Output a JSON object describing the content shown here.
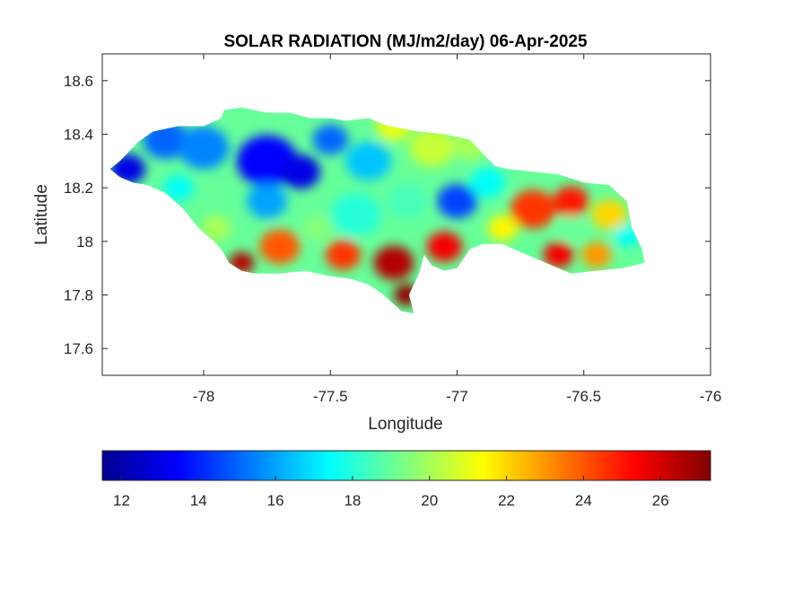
{
  "figure": {
    "title": "SOLAR RADIATION (MJ/m2/day) 06-Apr-2025"
  },
  "colors": {
    "axes": "#262626",
    "sea": "#ffffff",
    "colormap": [
      "#00008f",
      "#0000ff",
      "#0080ff",
      "#00ffff",
      "#80ff80",
      "#ffff00",
      "#ff8000",
      "#ff0000",
      "#800000"
    ]
  },
  "chart_data": {
    "type": "heatmap",
    "title": "SOLAR RADIATION (MJ/m2/day) 06-Apr-2025",
    "xlabel": "Longitude",
    "ylabel": "Latitude",
    "xlim": [
      -78.4,
      -76
    ],
    "ylim": [
      17.5,
      18.7
    ],
    "xticks": [
      -78,
      -77.5,
      -77,
      -76.5,
      -76
    ],
    "xtick_labels": [
      "-78",
      "-77.5",
      "-77",
      "-76.5",
      "-76"
    ],
    "yticks": [
      17.6,
      17.8,
      18,
      18.2,
      18.4,
      18.6
    ],
    "ytick_labels": [
      "17.6",
      "17.8",
      "18",
      "18.2",
      "18.4",
      "18.6"
    ],
    "colorbar": {
      "location": "bottom",
      "range": [
        11.5,
        27.3
      ],
      "ticks": [
        12,
        14,
        16,
        18,
        20,
        22,
        24,
        26
      ],
      "tick_labels": [
        "12",
        "14",
        "16",
        "18",
        "20",
        "22",
        "24",
        "26"
      ],
      "colormap": "jet"
    },
    "outline_lonlat": [
      [
        -78.37,
        18.27
      ],
      [
        -78.33,
        18.3
      ],
      [
        -78.3,
        18.33
      ],
      [
        -78.26,
        18.37
      ],
      [
        -78.2,
        18.41
      ],
      [
        -78.1,
        18.43
      ],
      [
        -78.0,
        18.43
      ],
      [
        -77.93,
        18.46
      ],
      [
        -77.92,
        18.49
      ],
      [
        -77.85,
        18.5
      ],
      [
        -77.75,
        18.48
      ],
      [
        -77.66,
        18.48
      ],
      [
        -77.58,
        18.46
      ],
      [
        -77.5,
        18.46
      ],
      [
        -77.44,
        18.45
      ],
      [
        -77.35,
        18.46
      ],
      [
        -77.27,
        18.43
      ],
      [
        -77.15,
        18.41
      ],
      [
        -77.05,
        18.4
      ],
      [
        -76.95,
        18.38
      ],
      [
        -76.9,
        18.33
      ],
      [
        -76.85,
        18.28
      ],
      [
        -76.8,
        18.27
      ],
      [
        -76.6,
        18.25
      ],
      [
        -76.5,
        18.22
      ],
      [
        -76.4,
        18.21
      ],
      [
        -76.33,
        18.15
      ],
      [
        -76.31,
        18.05
      ],
      [
        -76.27,
        17.97
      ],
      [
        -76.26,
        17.92
      ],
      [
        -76.35,
        17.9
      ],
      [
        -76.45,
        17.89
      ],
      [
        -76.55,
        17.88
      ],
      [
        -76.65,
        17.92
      ],
      [
        -76.75,
        17.96
      ],
      [
        -76.82,
        17.99
      ],
      [
        -76.9,
        17.99
      ],
      [
        -76.95,
        17.97
      ],
      [
        -77.0,
        17.9
      ],
      [
        -77.05,
        17.89
      ],
      [
        -77.1,
        17.91
      ],
      [
        -77.13,
        17.95
      ],
      [
        -77.15,
        17.88
      ],
      [
        -77.19,
        17.8
      ],
      [
        -77.17,
        17.73
      ],
      [
        -77.22,
        17.74
      ],
      [
        -77.29,
        17.8
      ],
      [
        -77.35,
        17.84
      ],
      [
        -77.42,
        17.86
      ],
      [
        -77.5,
        17.87
      ],
      [
        -77.6,
        17.89
      ],
      [
        -77.7,
        17.88
      ],
      [
        -77.8,
        17.88
      ],
      [
        -77.85,
        17.89
      ],
      [
        -77.9,
        17.92
      ],
      [
        -77.93,
        17.97
      ],
      [
        -77.96,
        18.0
      ],
      [
        -78.02,
        18.05
      ],
      [
        -78.08,
        18.12
      ],
      [
        -78.15,
        18.18
      ],
      [
        -78.22,
        18.21
      ],
      [
        -78.28,
        18.22
      ],
      [
        -78.33,
        18.24
      ],
      [
        -78.37,
        18.27
      ]
    ],
    "blobs": [
      {
        "lon": -78.3,
        "lat": 18.27,
        "value": 13.0,
        "radius": 0.07
      },
      {
        "lon": -78.15,
        "lat": 18.38,
        "value": 15.0,
        "radius": 0.09
      },
      {
        "lon": -78.0,
        "lat": 18.35,
        "value": 15.5,
        "radius": 0.1
      },
      {
        "lon": -77.75,
        "lat": 18.3,
        "value": 13.5,
        "radius": 0.12
      },
      {
        "lon": -77.62,
        "lat": 18.26,
        "value": 13.0,
        "radius": 0.08
      },
      {
        "lon": -77.5,
        "lat": 18.38,
        "value": 15.0,
        "radius": 0.07
      },
      {
        "lon": -77.75,
        "lat": 18.15,
        "value": 16.0,
        "radius": 0.08
      },
      {
        "lon": -77.35,
        "lat": 18.3,
        "value": 16.5,
        "radius": 0.09
      },
      {
        "lon": -77.25,
        "lat": 18.43,
        "value": 21.0,
        "radius": 0.07
      },
      {
        "lon": -77.1,
        "lat": 18.35,
        "value": 20.5,
        "radius": 0.09
      },
      {
        "lon": -76.95,
        "lat": 18.36,
        "value": 20.0,
        "radius": 0.07
      },
      {
        "lon": -77.4,
        "lat": 18.1,
        "value": 18.0,
        "radius": 0.1
      },
      {
        "lon": -77.2,
        "lat": 18.15,
        "value": 18.5,
        "radius": 0.08
      },
      {
        "lon": -77.0,
        "lat": 18.15,
        "value": 14.5,
        "radius": 0.08
      },
      {
        "lon": -76.88,
        "lat": 18.22,
        "value": 17.5,
        "radius": 0.07
      },
      {
        "lon": -76.7,
        "lat": 18.12,
        "value": 24.5,
        "radius": 0.09
      },
      {
        "lon": -76.55,
        "lat": 18.15,
        "value": 25.0,
        "radius": 0.07
      },
      {
        "lon": -76.4,
        "lat": 18.1,
        "value": 22.0,
        "radius": 0.07
      },
      {
        "lon": -76.33,
        "lat": 18.02,
        "value": 17.5,
        "radius": 0.05
      },
      {
        "lon": -76.45,
        "lat": 17.95,
        "value": 23.0,
        "radius": 0.06
      },
      {
        "lon": -76.6,
        "lat": 17.95,
        "value": 25.5,
        "radius": 0.06
      },
      {
        "lon": -76.82,
        "lat": 18.05,
        "value": 21.5,
        "radius": 0.06
      },
      {
        "lon": -77.05,
        "lat": 17.98,
        "value": 25.5,
        "radius": 0.07
      },
      {
        "lon": -77.25,
        "lat": 17.92,
        "value": 26.5,
        "radius": 0.08
      },
      {
        "lon": -77.2,
        "lat": 17.8,
        "value": 27.0,
        "radius": 0.05
      },
      {
        "lon": -77.45,
        "lat": 17.95,
        "value": 24.5,
        "radius": 0.07
      },
      {
        "lon": -77.7,
        "lat": 17.98,
        "value": 24.0,
        "radius": 0.08
      },
      {
        "lon": -77.85,
        "lat": 17.92,
        "value": 26.5,
        "radius": 0.05
      },
      {
        "lon": -77.95,
        "lat": 18.05,
        "value": 20.0,
        "radius": 0.06
      },
      {
        "lon": -77.55,
        "lat": 18.05,
        "value": 19.5,
        "radius": 0.06
      },
      {
        "lon": -78.1,
        "lat": 18.2,
        "value": 17.5,
        "radius": 0.06
      },
      {
        "lon": -76.55,
        "lat": 18.05,
        "value": 19.0,
        "radius": 0.05
      }
    ]
  }
}
